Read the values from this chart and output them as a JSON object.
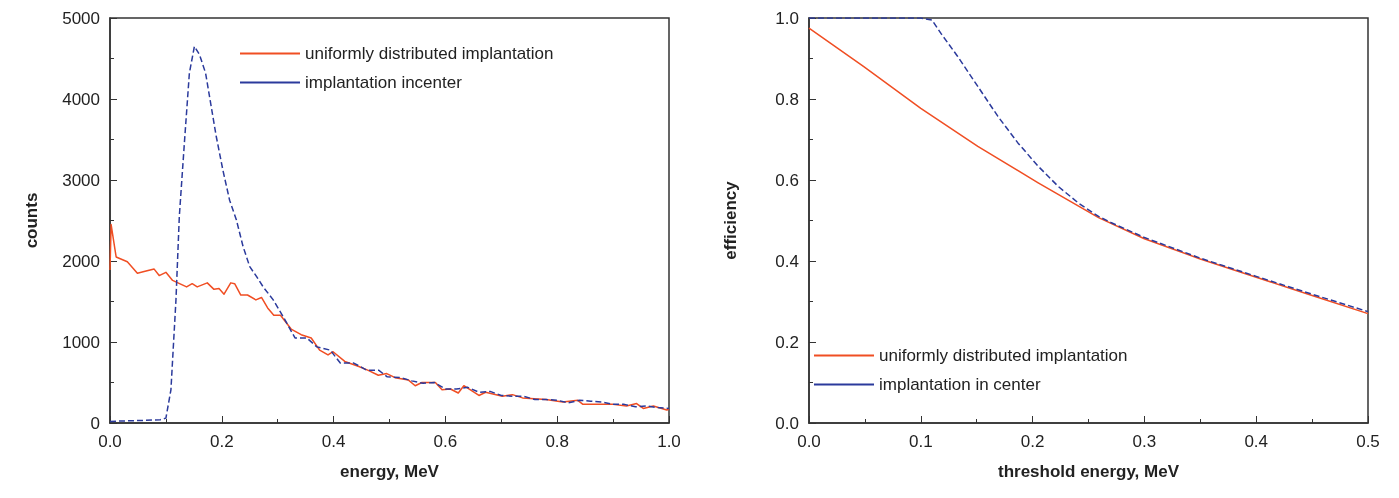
{
  "chart_data": [
    {
      "type": "line",
      "xlabel": "energy, MeV",
      "ylabel": "counts",
      "xlim": [
        0,
        1
      ],
      "ylim": [
        0,
        5000
      ],
      "xticks": [
        {
          "value": 0,
          "label": "0.0"
        },
        {
          "value": 0.2,
          "label": "0.2"
        },
        {
          "value": 0.4,
          "label": "0.4"
        },
        {
          "value": 0.6,
          "label": "0.6"
        },
        {
          "value": 0.8,
          "label": "0.8"
        },
        {
          "value": 1,
          "label": "1.0"
        }
      ],
      "yticks": [
        0,
        1000,
        2000,
        3000,
        4000,
        5000
      ],
      "legend": "top",
      "marker": "none",
      "grid": false,
      "series": [
        {
          "name": "uniformly distributed implantation",
          "color": "#f04e23",
          "line_style": "solid",
          "x": [
            0,
            0.002,
            0.011,
            0.031,
            0.049,
            0.061,
            0.079,
            0.088,
            0.1,
            0.112,
            0.137,
            0.147,
            0.156,
            0.174,
            0.186,
            0.195,
            0.204,
            0.216,
            0.223,
            0.234,
            0.246,
            0.261,
            0.271,
            0.282,
            0.293,
            0.305,
            0.324,
            0.342,
            0.36,
            0.375,
            0.39,
            0.399,
            0.42,
            0.444,
            0.462,
            0.48,
            0.495,
            0.51,
            0.534,
            0.546,
            0.558,
            0.582,
            0.594,
            0.609,
            0.623,
            0.633,
            0.66,
            0.672,
            0.702,
            0.72,
            0.738,
            0.78,
            0.81,
            0.837,
            0.846,
            0.9,
            0.924,
            0.942,
            0.954,
            0.972,
            0.996,
            1
          ],
          "values": [
            1890,
            2450,
            2050,
            1990,
            1850,
            1870,
            1900,
            1820,
            1860,
            1760,
            1680,
            1720,
            1680,
            1730,
            1650,
            1660,
            1590,
            1730,
            1720,
            1580,
            1580,
            1520,
            1550,
            1420,
            1330,
            1330,
            1160,
            1090,
            1050,
            900,
            840,
            880,
            760,
            700,
            650,
            590,
            610,
            560,
            530,
            460,
            500,
            500,
            410,
            420,
            370,
            460,
            340,
            380,
            330,
            350,
            310,
            290,
            260,
            280,
            230,
            230,
            210,
            240,
            180,
            210,
            160,
            170
          ]
        },
        {
          "name": "implantation incenter",
          "color": "#2b3a9c",
          "line_style": "dashed",
          "x": [
            0,
            0.05,
            0.09,
            0.1,
            0.109,
            0.118,
            0.124,
            0.133,
            0.142,
            0.151,
            0.16,
            0.171,
            0.181,
            0.19,
            0.202,
            0.214,
            0.226,
            0.238,
            0.25,
            0.262,
            0.274,
            0.292,
            0.31,
            0.331,
            0.352,
            0.37,
            0.394,
            0.412,
            0.436,
            0.46,
            0.481,
            0.496,
            0.52,
            0.54,
            0.56,
            0.58,
            0.6,
            0.62,
            0.64,
            0.66,
            0.68,
            0.7,
            0.72,
            0.74,
            0.76,
            0.78,
            0.8,
            0.82,
            0.84,
            0.86,
            0.88,
            0.9,
            0.92,
            0.94,
            0.96,
            0.98,
            1
          ],
          "values": [
            20,
            30,
            40,
            60,
            410,
            1520,
            2550,
            3450,
            4320,
            4650,
            4550,
            4320,
            3910,
            3540,
            3120,
            2750,
            2510,
            2180,
            1930,
            1810,
            1680,
            1520,
            1310,
            1050,
            1050,
            940,
            900,
            740,
            740,
            650,
            650,
            570,
            560,
            520,
            490,
            500,
            420,
            420,
            440,
            380,
            390,
            340,
            330,
            330,
            290,
            290,
            280,
            250,
            280,
            270,
            260,
            230,
            230,
            200,
            210,
            190,
            180
          ]
        }
      ]
    },
    {
      "type": "line",
      "xlabel": "threshold energy, MeV",
      "ylabel": "efficiency",
      "xlim": [
        0,
        0.5
      ],
      "ylim": [
        0,
        1
      ],
      "xticks": [
        {
          "value": 0,
          "label": "0.0"
        },
        0.1,
        0.2,
        0.3,
        0.4,
        0.5
      ],
      "yticks": [
        {
          "value": 0,
          "label": "0.0"
        },
        0.2,
        0.4,
        0.6,
        0.8,
        {
          "value": 1,
          "label": "1.0"
        }
      ],
      "legend": "bottom left",
      "marker": "none",
      "grid": false,
      "series": [
        {
          "name": "uniformly distributed implantation",
          "color": "#f04e23",
          "line_style": "solid",
          "x": [
            0,
            0.049,
            0.1,
            0.151,
            0.205,
            0.259,
            0.3,
            0.35,
            0.4,
            0.45,
            0.5
          ],
          "values": [
            0.975,
            0.88,
            0.777,
            0.683,
            0.593,
            0.507,
            0.455,
            0.405,
            0.36,
            0.315,
            0.27
          ]
        },
        {
          "name": "implantation in center",
          "color": "#2b3a9c",
          "line_style": "dashed",
          "x": [
            0,
            0.05,
            0.1,
            0.11,
            0.118,
            0.133,
            0.151,
            0.169,
            0.187,
            0.205,
            0.223,
            0.241,
            0.259,
            0.27,
            0.3,
            0.35,
            0.4,
            0.45,
            0.5
          ],
          "values": [
            1,
            1,
            1,
            0.995,
            0.962,
            0.905,
            0.831,
            0.757,
            0.691,
            0.634,
            0.584,
            0.543,
            0.51,
            0.495,
            0.458,
            0.407,
            0.362,
            0.318,
            0.275
          ]
        }
      ]
    }
  ]
}
